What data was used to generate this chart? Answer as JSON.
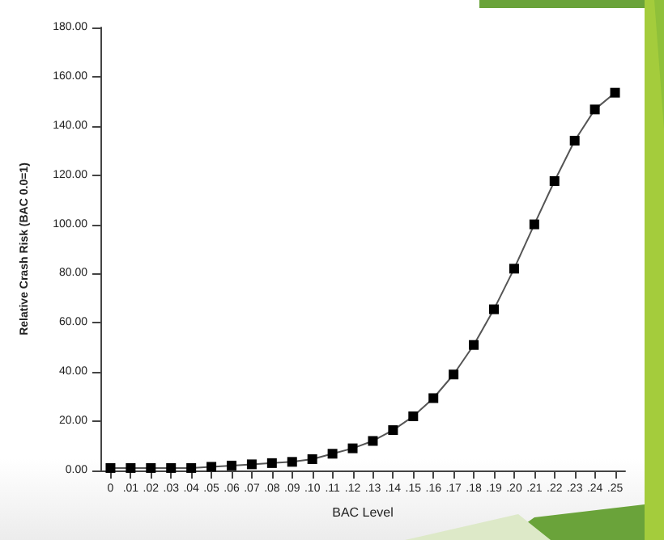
{
  "chart_data": {
    "type": "line",
    "xlabel": "BAC Level",
    "ylabel": "Relative Crash Risk (BAC 0.0=1)",
    "categories": [
      "0",
      ".01",
      ".02",
      ".03",
      ".04",
      ".05",
      ".06",
      ".07",
      ".08",
      ".09",
      ".10",
      ".11",
      ".12",
      ".13",
      ".14",
      ".15",
      ".16",
      ".17",
      ".18",
      ".19",
      ".20",
      ".21",
      ".22",
      ".23",
      ".24",
      ".25"
    ],
    "series": [
      {
        "color": "#000000",
        "values": [
          1,
          1,
          1,
          1,
          1,
          1.5,
          2,
          2.5,
          3,
          3.5,
          4.6,
          6.8,
          9,
          12,
          16.4,
          22,
          29.4,
          39,
          51,
          65.5,
          82,
          100,
          117.6,
          134,
          146.7,
          153.5
        ]
      }
    ],
    "ylim": [
      0,
      180
    ],
    "yticks": [
      {
        "value": 0,
        "label": "0.00"
      },
      {
        "value": 20,
        "label": "20.00"
      },
      {
        "value": 40,
        "label": "40.00"
      },
      {
        "value": 60,
        "label": "60.00"
      },
      {
        "value": 80,
        "label": "80.00"
      },
      {
        "value": 100,
        "label": "100.00"
      },
      {
        "value": 120,
        "label": "120.00"
      },
      {
        "value": 140,
        "label": "140.00"
      },
      {
        "value": 160,
        "label": "160.00"
      },
      {
        "value": 180,
        "label": "180.00"
      }
    ],
    "grid": false,
    "marker": "square",
    "line_style": "solid"
  }
}
